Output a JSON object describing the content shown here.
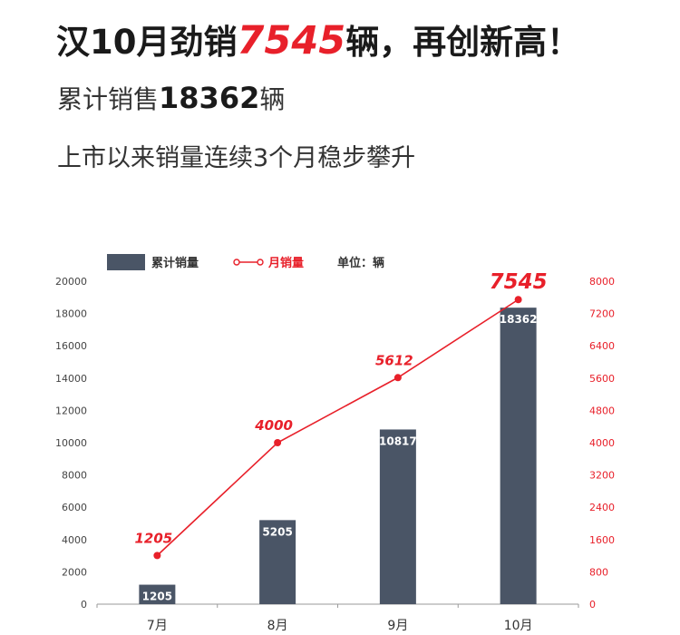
{
  "header": {
    "headline_prefix": "汉10月劲销",
    "headline_highlight": "7545",
    "headline_suffix": "辆，再创新高！",
    "sub1_prefix": "累计销售",
    "sub1_number": "18362",
    "sub1_suffix": "辆",
    "sub2": "上市以来销量连续3个月稳步攀升"
  },
  "colors": {
    "bar": "#4a5566",
    "line": "#e8202a",
    "text": "#333333"
  },
  "chart_data": {
    "type": "bar+line",
    "categories": [
      "7月",
      "8月",
      "9月",
      "10月"
    ],
    "series": [
      {
        "name": "累计销量",
        "type": "bar",
        "axis": "left",
        "values": [
          1205,
          5205,
          10817,
          18362
        ]
      },
      {
        "name": "月销量",
        "type": "line",
        "axis": "right",
        "values": [
          1205,
          4000,
          5612,
          7545
        ]
      }
    ],
    "unit_label": "单位：辆",
    "y_left": {
      "range": [
        0,
        20000
      ],
      "ticks": [
        0,
        2000,
        4000,
        6000,
        8000,
        10000,
        12000,
        14000,
        16000,
        18000,
        20000
      ]
    },
    "y_right": {
      "range": [
        0,
        8000
      ],
      "ticks": [
        0,
        800,
        1600,
        2400,
        3200,
        4000,
        4800,
        5600,
        6400,
        7200,
        8000
      ]
    },
    "legend": "top",
    "grid": false
  }
}
